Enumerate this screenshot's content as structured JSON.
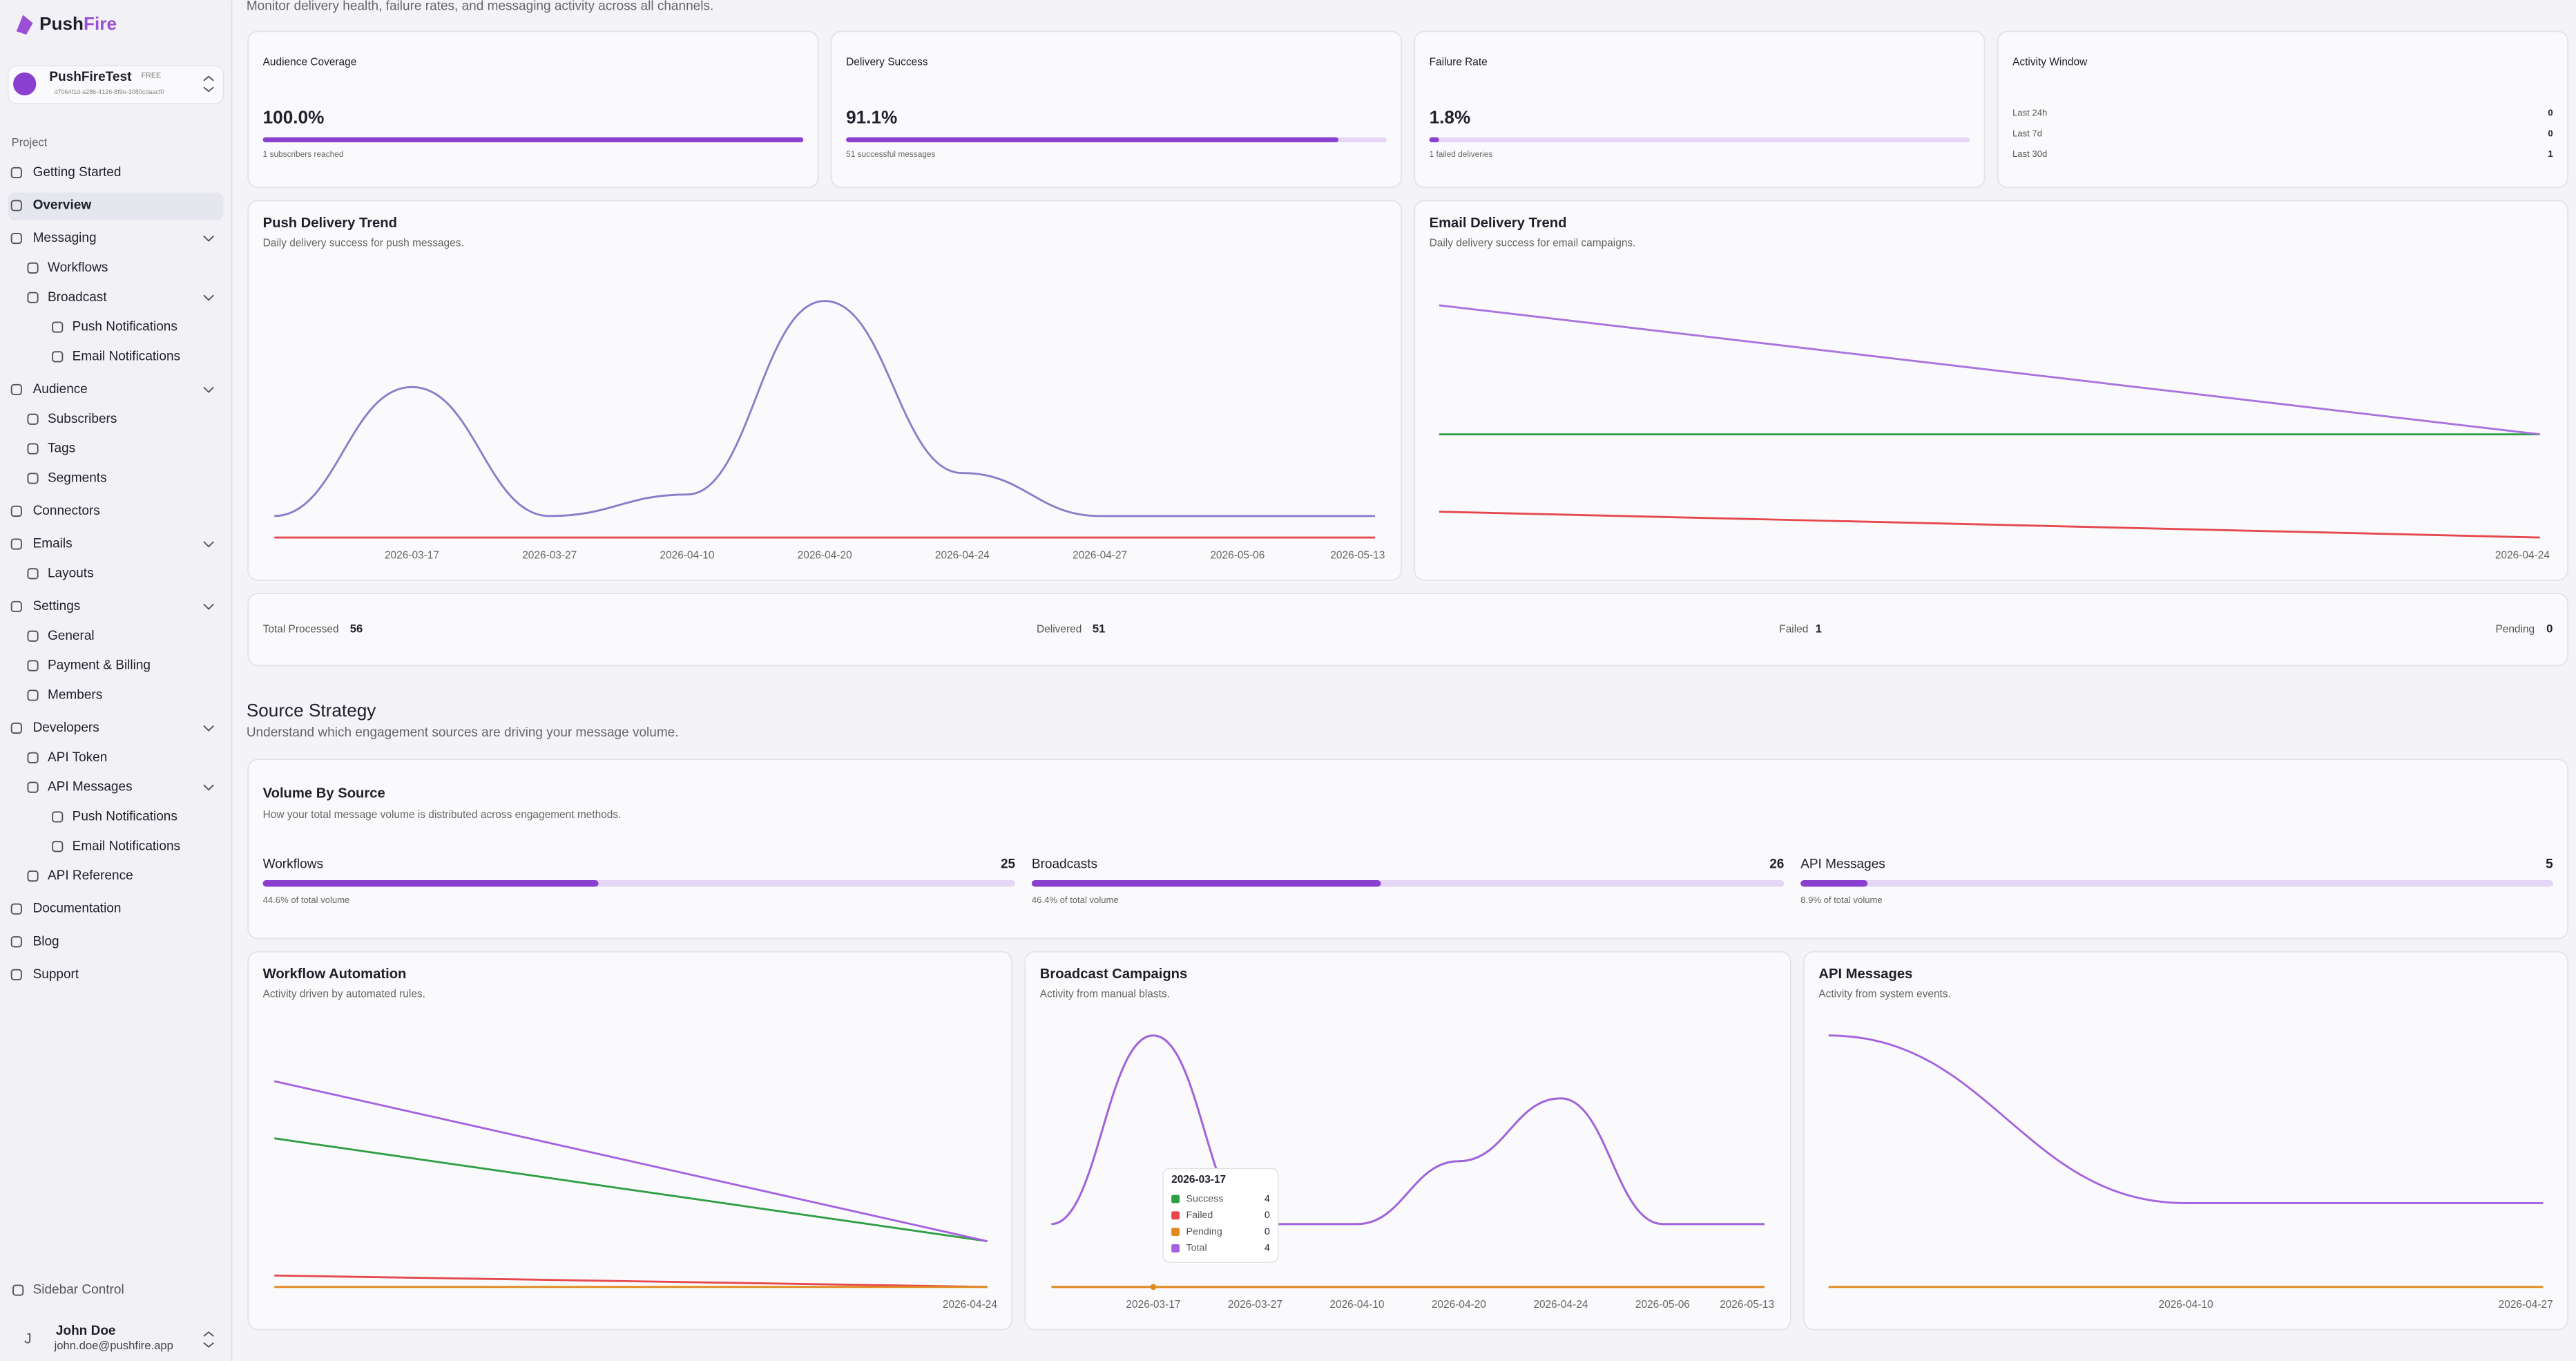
{
  "sidebar": {
    "brand": {
      "name": "Push",
      "accent": "Fire"
    },
    "project": {
      "name": "PushFireTest",
      "plan": "FREE",
      "id": "d7064f1d-a286-4126-8f9e-3080cdaacf0"
    },
    "section": "Project",
    "nav": [
      {
        "label": "Getting Started",
        "level": 0
      },
      {
        "label": "Overview",
        "level": 0,
        "active": true
      },
      {
        "label": "Messaging",
        "level": 0,
        "expandable": true
      },
      {
        "label": "Workflows",
        "level": 1
      },
      {
        "label": "Broadcast",
        "level": 1,
        "expandable": true
      },
      {
        "label": "Push Notifications",
        "level": 2
      },
      {
        "label": "Email Notifications",
        "level": 2
      },
      {
        "label": "Audience",
        "level": 0,
        "expandable": true
      },
      {
        "label": "Subscribers",
        "level": 1
      },
      {
        "label": "Tags",
        "level": 1
      },
      {
        "label": "Segments",
        "level": 1
      },
      {
        "label": "Connectors",
        "level": 0
      },
      {
        "label": "Emails",
        "level": 0,
        "expandable": true
      },
      {
        "label": "Layouts",
        "level": 1
      },
      {
        "label": "Settings",
        "level": 0,
        "expandable": true
      },
      {
        "label": "General",
        "level": 1
      },
      {
        "label": "Payment & Billing",
        "level": 1
      },
      {
        "label": "Members",
        "level": 1
      },
      {
        "label": "Developers",
        "level": 0,
        "expandable": true
      },
      {
        "label": "API Token",
        "level": 1
      },
      {
        "label": "API Messages",
        "level": 1,
        "expandable": true
      },
      {
        "label": "Push Notifications",
        "level": 2
      },
      {
        "label": "Email Notifications",
        "level": 2
      },
      {
        "label": "API Reference",
        "level": 1
      },
      {
        "label": "Documentation",
        "level": 0
      },
      {
        "label": "Blog",
        "level": 0
      },
      {
        "label": "Support",
        "level": 0
      }
    ],
    "control": "Sidebar Control",
    "user": {
      "initial": "J",
      "name": "John Doe",
      "email": "john.doe@pushfire.app"
    }
  },
  "header": {
    "subtitle": "Monitor delivery health, failure rates, and messaging activity across all channels."
  },
  "stats": [
    {
      "title": "Audience Coverage",
      "value": 100.0,
      "value_label": "100.0%",
      "note": "1 subscribers reached"
    },
    {
      "title": "Delivery Success",
      "value": 91.1,
      "value_label": "91.1%",
      "note": "51 successful messages"
    },
    {
      "title": "Failure Rate",
      "value": 1.8,
      "value_label": "1.8%",
      "note": "1 failed deliveries"
    }
  ],
  "activity": {
    "title": "Activity Window",
    "rows": [
      {
        "label": "Last 24h",
        "value": 0
      },
      {
        "label": "Last 7d",
        "value": 0
      },
      {
        "label": "Last 30d",
        "value": 1
      }
    ]
  },
  "summary": [
    {
      "label": "Total Processed",
      "value": 56
    },
    {
      "label": "Delivered",
      "value": 51
    },
    {
      "label": "Failed",
      "value": 1
    },
    {
      "label": "Pending",
      "value": 0
    }
  ],
  "source": {
    "title": "Source Strategy",
    "subtitle": "Understand which engagement sources are driving your message volume.",
    "card_title": "Volume By Source",
    "card_subtitle": "How your total message volume is distributed across engagement methods.",
    "items": [
      {
        "name": "Workflows",
        "count": 25,
        "share": 44.6,
        "share_label": "44.6% of total volume"
      },
      {
        "name": "Broadcasts",
        "count": 26,
        "share": 46.4,
        "share_label": "46.4% of total volume"
      },
      {
        "name": "API Messages",
        "count": 5,
        "share": 8.9,
        "share_label": "8.9% of total volume"
      }
    ]
  },
  "charts": [
    {
      "type": "line",
      "title": "Push Delivery Trend",
      "subtitle": "Daily delivery success for push messages.",
      "categories": [
        null,
        "2026-03-17",
        "2026-03-27",
        "2026-04-10",
        "2026-04-20",
        "2026-04-24",
        "2026-04-27",
        "2026-05-06",
        "2026-05-13"
      ],
      "ylim": [
        0,
        12
      ],
      "series": [
        {
          "color": "#e5484d",
          "values": [
            0,
            0,
            0,
            0,
            0,
            0,
            0,
            0,
            0
          ]
        },
        {
          "color": "#8a7cc9",
          "values": [
            1,
            7,
            1,
            2,
            11,
            3,
            1,
            1,
            1
          ]
        }
      ]
    },
    {
      "type": "line",
      "title": "Email Delivery Trend",
      "subtitle": "Daily delivery success for email campaigns.",
      "categories": [
        null,
        "2026-04-24"
      ],
      "ylim": [
        0,
        10
      ],
      "series": [
        {
          "color": "#e5484d",
          "values": [
            1,
            0
          ]
        },
        {
          "color": "#2f9e44",
          "values": [
            4,
            4
          ]
        },
        {
          "color": "#a873dc",
          "values": [
            9,
            4
          ]
        }
      ]
    },
    {
      "type": "line",
      "title": "Workflow Automation",
      "subtitle": "Activity driven by automated rules.",
      "categories": [
        null,
        "2026-04-24"
      ],
      "ylim": [
        0,
        22
      ],
      "series": [
        {
          "color": "#e5484d",
          "values": [
            1,
            0
          ]
        },
        {
          "color": "#e08a1e",
          "values": [
            0,
            0
          ]
        },
        {
          "color": "#2f9e44",
          "values": [
            13,
            4
          ]
        },
        {
          "color": "#a561e0",
          "values": [
            18,
            4
          ]
        }
      ]
    },
    {
      "type": "line",
      "title": "Broadcast Campaigns",
      "subtitle": "Activity from manual blasts.",
      "categories": [
        null,
        "2026-03-17",
        "2026-03-27",
        "2026-04-10",
        "2026-04-20",
        "2026-04-24",
        "2026-05-06",
        "2026-05-13"
      ],
      "ylim": [
        0,
        4
      ],
      "series": [
        {
          "name": "Success",
          "color": "#2f9e44",
          "values": [
            1,
            4,
            1,
            1,
            2,
            3,
            1,
            1
          ]
        },
        {
          "name": "Failed",
          "color": "#e5484d",
          "values": [
            0,
            0,
            0,
            0,
            0,
            0,
            0,
            0
          ]
        },
        {
          "name": "Pending",
          "color": "#e08a1e",
          "values": [
            0,
            0,
            0,
            0,
            0,
            0,
            0,
            0
          ]
        },
        {
          "name": "Total",
          "color": "#a561e0",
          "values": [
            1,
            4,
            1,
            1,
            2,
            3,
            1,
            1
          ]
        }
      ]
    },
    {
      "type": "line",
      "title": "API Messages",
      "subtitle": "Activity from system events.",
      "categories": [
        null,
        "2026-04-10",
        "2026-04-27"
      ],
      "ylim": [
        0,
        3
      ],
      "series": [
        {
          "color": "#e08a1e",
          "values": [
            0,
            0,
            0
          ]
        },
        {
          "color": "#a561e0",
          "values": [
            3,
            1,
            1
          ]
        }
      ]
    }
  ]
}
